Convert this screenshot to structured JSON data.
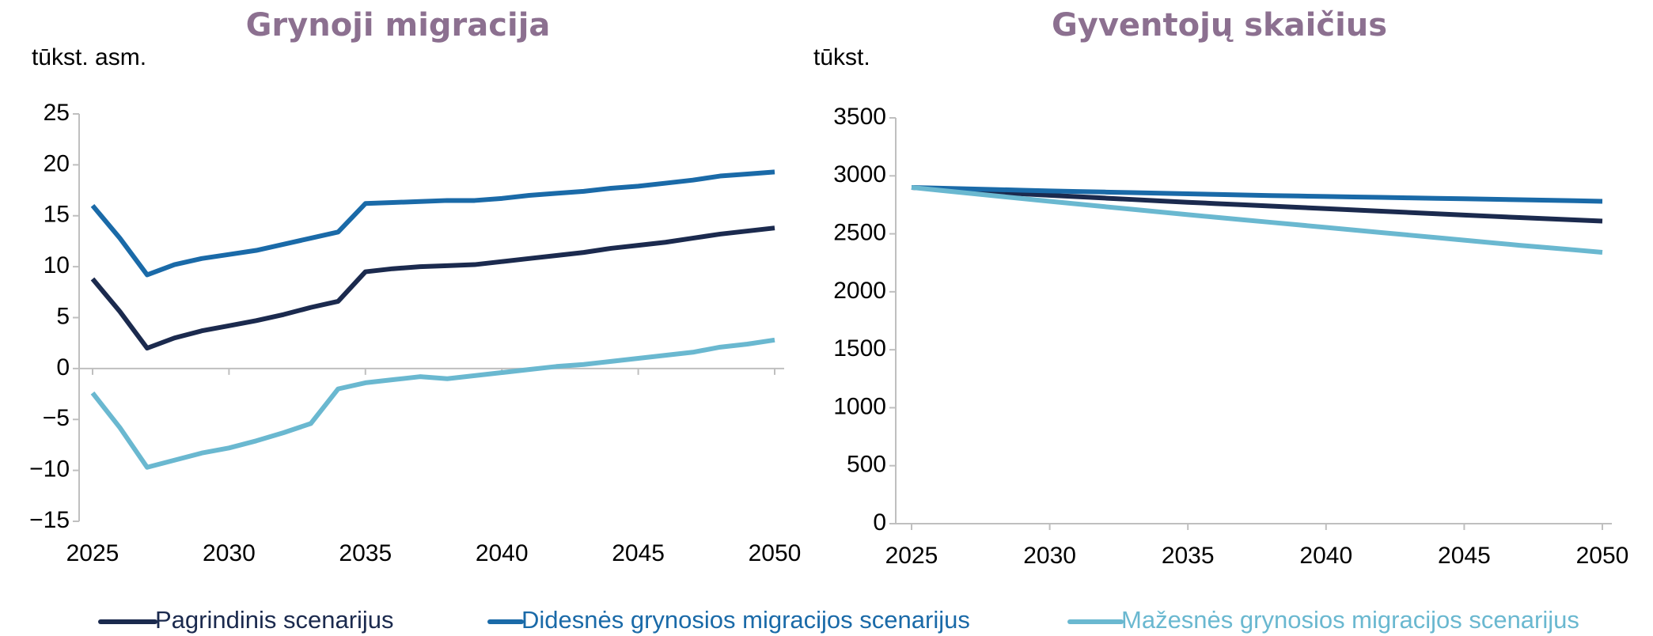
{
  "chart_data": [
    {
      "type": "line",
      "title": "Grynoji migracija",
      "y_label": "tūkst. asm.",
      "x": [
        2025,
        2026,
        2027,
        2028,
        2029,
        2030,
        2031,
        2032,
        2033,
        2034,
        2035,
        2036,
        2037,
        2038,
        2039,
        2040,
        2041,
        2042,
        2043,
        2044,
        2045,
        2046,
        2047,
        2048,
        2049,
        2050
      ],
      "xlim": [
        2025,
        2050
      ],
      "xticks": [
        2025,
        2030,
        2035,
        2040,
        2045,
        2050
      ],
      "ylim": [
        -15,
        25
      ],
      "yticks": [
        {
          "value": -15,
          "label": "−15"
        },
        {
          "value": -10,
          "label": "−10"
        },
        {
          "value": -5,
          "label": "−5"
        },
        0,
        5,
        10,
        15,
        20,
        25
      ],
      "series": [
        {
          "name": "Pagrindinis scenarijus",
          "color": "#1b2a4e",
          "values": [
            8.8,
            5.6,
            2.0,
            3.0,
            3.7,
            4.2,
            4.7,
            5.3,
            6.0,
            6.6,
            9.5,
            9.8,
            10.0,
            10.1,
            10.2,
            10.5,
            10.8,
            11.1,
            11.4,
            11.8,
            12.1,
            12.4,
            12.8,
            13.2,
            13.5,
            13.8
          ]
        },
        {
          "name": "Didesnės grynosios migracijos scenarijus",
          "color": "#1a6aa8",
          "values": [
            16.0,
            12.8,
            9.2,
            10.2,
            10.8,
            11.2,
            11.6,
            12.2,
            12.8,
            13.4,
            16.2,
            16.3,
            16.4,
            16.5,
            16.5,
            16.7,
            17.0,
            17.2,
            17.4,
            17.7,
            17.9,
            18.2,
            18.5,
            18.9,
            19.1,
            19.3
          ]
        },
        {
          "name": "Mažesnės grynosios migracijos scenarijus",
          "color": "#6ab8d0",
          "values": [
            -2.4,
            -5.8,
            -9.7,
            -9.0,
            -8.3,
            -7.8,
            -7.1,
            -6.3,
            -5.4,
            -2.0,
            -1.4,
            -1.1,
            -0.8,
            -1.0,
            -0.7,
            -0.4,
            -0.1,
            0.2,
            0.4,
            0.7,
            1.0,
            1.3,
            1.6,
            2.1,
            2.4,
            2.8
          ]
        }
      ]
    },
    {
      "type": "line",
      "title": "Gyventojų skaičius",
      "y_label": "tūkst.",
      "x": [
        2025,
        2026,
        2027,
        2028,
        2029,
        2030,
        2031,
        2032,
        2033,
        2034,
        2035,
        2036,
        2037,
        2038,
        2039,
        2040,
        2041,
        2042,
        2043,
        2044,
        2045,
        2046,
        2047,
        2048,
        2049,
        2050
      ],
      "xlim": [
        2025,
        2050
      ],
      "xticks": [
        2025,
        2030,
        2035,
        2040,
        2045,
        2050
      ],
      "ylim": [
        0,
        3500
      ],
      "yticks": [
        0,
        500,
        1000,
        1500,
        2000,
        2500,
        3000,
        3500
      ],
      "series": [
        {
          "color": "#1b2a4e",
          "values": [
            2900,
            2886,
            2872,
            2858,
            2845,
            2832,
            2820,
            2808,
            2796,
            2784,
            2772,
            2761,
            2750,
            2739,
            2728,
            2717,
            2706,
            2695,
            2684,
            2673,
            2662,
            2651,
            2640,
            2630,
            2620,
            2610
          ]
        },
        {
          "color": "#1a6aa8",
          "values": [
            2900,
            2894,
            2888,
            2882,
            2876,
            2870,
            2865,
            2860,
            2855,
            2850,
            2845,
            2840,
            2835,
            2830,
            2826,
            2822,
            2818,
            2814,
            2810,
            2806,
            2802,
            2798,
            2794,
            2790,
            2785,
            2780
          ]
        },
        {
          "color": "#6ab8d0",
          "values": [
            2900,
            2876,
            2852,
            2828,
            2804,
            2780,
            2757,
            2734,
            2711,
            2688,
            2665,
            2643,
            2621,
            2599,
            2577,
            2555,
            2533,
            2511,
            2489,
            2467,
            2445,
            2423,
            2401,
            2381,
            2361,
            2340
          ]
        }
      ]
    }
  ]
}
